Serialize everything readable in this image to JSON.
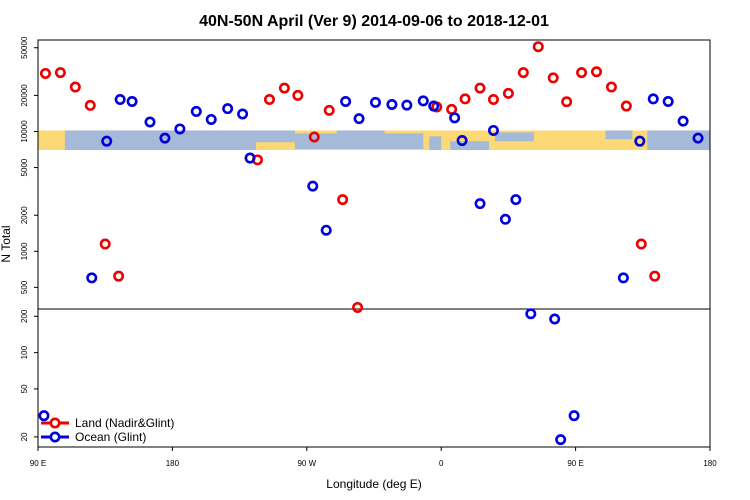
{
  "chart_data": {
    "type": "scatter",
    "title": "40N-50N April (Ver 9)   2014-09-06 to 2018-12-01",
    "xlabel": "Longitude (deg E)",
    "ylabel": "N Total",
    "x_ticks": [
      {
        "value": 90,
        "label": "90 E"
      },
      {
        "value": 180,
        "label": "180"
      },
      {
        "value": 270,
        "label": "90 W"
      },
      {
        "value": 360,
        "label": "0"
      },
      {
        "value": 450,
        "label": "90 E"
      },
      {
        "value": 540,
        "label": "180"
      }
    ],
    "xlim": [
      90,
      540
    ],
    "upper_panel": {
      "scale": "log",
      "ylim": [
        330,
        58000
      ],
      "y_ticks": [
        {
          "value": 500,
          "label": "500"
        },
        {
          "value": 1000,
          "label": "1000"
        },
        {
          "value": 2000,
          "label": "2000"
        },
        {
          "value": 5000,
          "label": "5000"
        },
        {
          "value": 10000,
          "label": "10000"
        },
        {
          "value": 20000,
          "label": "20000"
        },
        {
          "value": 50000,
          "label": "50000"
        }
      ]
    },
    "lower_panel": {
      "scale": "log",
      "ylim": [
        16.5,
        230
      ],
      "y_ticks": [
        {
          "value": 20,
          "label": "20"
        },
        {
          "value": 50,
          "label": "50"
        },
        {
          "value": 100,
          "label": "100"
        },
        {
          "value": 200,
          "label": "200"
        }
      ]
    },
    "map_band": {
      "y_bottom": 7000,
      "y_top": 10200,
      "land_color": "#fcd877",
      "ocean_color": "#a4bad8"
    },
    "legend": {
      "placement": "bottom-left"
    },
    "series": [
      {
        "name": "Land (Nadir&Glint)",
        "color": "#ee0000",
        "points": [
          {
            "x": 95,
            "y": 30500
          },
          {
            "x": 105,
            "y": 31000
          },
          {
            "x": 115,
            "y": 23500
          },
          {
            "x": 125,
            "y": 16500
          },
          {
            "x": 135,
            "y": 1150
          },
          {
            "x": 144,
            "y": 620
          },
          {
            "x": 237,
            "y": 5800
          },
          {
            "x": 245,
            "y": 18500
          },
          {
            "x": 255,
            "y": 23000
          },
          {
            "x": 264,
            "y": 20000
          },
          {
            "x": 275,
            "y": 9000
          },
          {
            "x": 285,
            "y": 15000
          },
          {
            "x": 294,
            "y": 2700
          },
          {
            "x": 304,
            "y": 340
          },
          {
            "x": 357,
            "y": 16000
          },
          {
            "x": 367,
            "y": 15300
          },
          {
            "x": 376,
            "y": 18700
          },
          {
            "x": 386,
            "y": 23000
          },
          {
            "x": 395,
            "y": 18500
          },
          {
            "x": 405,
            "y": 20800
          },
          {
            "x": 415,
            "y": 31000
          },
          {
            "x": 425,
            "y": 51000
          },
          {
            "x": 435,
            "y": 28000
          },
          {
            "x": 444,
            "y": 17700
          },
          {
            "x": 454,
            "y": 31000
          },
          {
            "x": 464,
            "y": 31500
          },
          {
            "x": 474,
            "y": 23500
          },
          {
            "x": 484,
            "y": 16300
          },
          {
            "x": 494,
            "y": 1150
          },
          {
            "x": 503,
            "y": 620
          }
        ]
      },
      {
        "name": "Ocean (Glint)",
        "color": "#0000dd",
        "points": [
          {
            "x": 94,
            "y": 30
          },
          {
            "x": 126,
            "y": 600
          },
          {
            "x": 136,
            "y": 8300
          },
          {
            "x": 145,
            "y": 18500
          },
          {
            "x": 153,
            "y": 17800
          },
          {
            "x": 165,
            "y": 12000
          },
          {
            "x": 175,
            "y": 8800
          },
          {
            "x": 185,
            "y": 10500
          },
          {
            "x": 196,
            "y": 14700
          },
          {
            "x": 206,
            "y": 12600
          },
          {
            "x": 217,
            "y": 15500
          },
          {
            "x": 227,
            "y": 14000
          },
          {
            "x": 232,
            "y": 6000
          },
          {
            "x": 274,
            "y": 3500
          },
          {
            "x": 283,
            "y": 1500
          },
          {
            "x": 296,
            "y": 17800
          },
          {
            "x": 305,
            "y": 12800
          },
          {
            "x": 316,
            "y": 17500
          },
          {
            "x": 327,
            "y": 16800
          },
          {
            "x": 337,
            "y": 16600
          },
          {
            "x": 348,
            "y": 18000
          },
          {
            "x": 355,
            "y": 16300
          },
          {
            "x": 369,
            "y": 13000
          },
          {
            "x": 374,
            "y": 8400
          },
          {
            "x": 386,
            "y": 2500
          },
          {
            "x": 395,
            "y": 10200
          },
          {
            "x": 403,
            "y": 1850
          },
          {
            "x": 410,
            "y": 2700
          },
          {
            "x": 420,
            "y": 210
          },
          {
            "x": 436,
            "y": 190
          },
          {
            "x": 440,
            "y": 19
          },
          {
            "x": 449,
            "y": 30
          },
          {
            "x": 482,
            "y": 600
          },
          {
            "x": 493,
            "y": 8300
          },
          {
            "x": 502,
            "y": 18700
          },
          {
            "x": 512,
            "y": 17800
          },
          {
            "x": 522,
            "y": 12200
          },
          {
            "x": 532,
            "y": 8800
          }
        ]
      }
    ]
  }
}
